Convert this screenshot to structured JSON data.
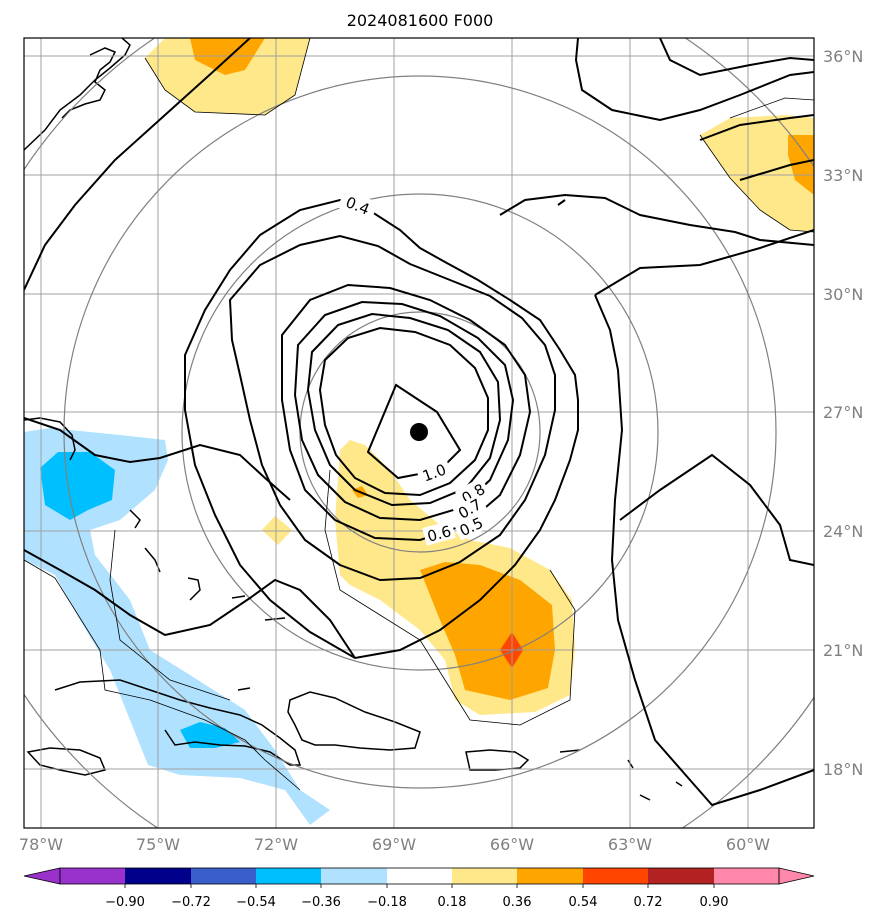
{
  "title": "2024081600 F000",
  "longitude_labels": [
    "78°W",
    "75°W",
    "72°W",
    "69°W",
    "66°W",
    "63°W",
    "60°W"
  ],
  "latitude_labels": [
    "36°N",
    "33°N",
    "30°N",
    "27°N",
    "24°N",
    "21°N",
    "18°N"
  ],
  "contour_labels": [
    "0.4",
    "1.0",
    "0.8",
    "0.7",
    "0.6",
    "0.5"
  ],
  "colorbar": {
    "tick_labels": [
      "−0.90",
      "−0.72",
      "−0.54",
      "−0.36",
      "−0.18",
      "0.18",
      "0.36",
      "0.54",
      "0.72",
      "0.90"
    ],
    "colors": [
      "#9932cc",
      "#00008b",
      "#3a5fcd",
      "#00bfff",
      "#b0e2ff",
      "#ffffff",
      "#ffe88a",
      "#ffa500",
      "#ff4500",
      "#b22222",
      "#ff88aa"
    ]
  },
  "colors": {
    "light_yellow": "#ffe88a",
    "orange": "#ffa500",
    "red_orange": "#ff4500",
    "light_blue": "#b0e2ff",
    "deep_sky_blue": "#00bfff",
    "grid": "#a0a0a0",
    "range_rings": "#808080"
  },
  "storm_center_marker": "filled-circle"
}
